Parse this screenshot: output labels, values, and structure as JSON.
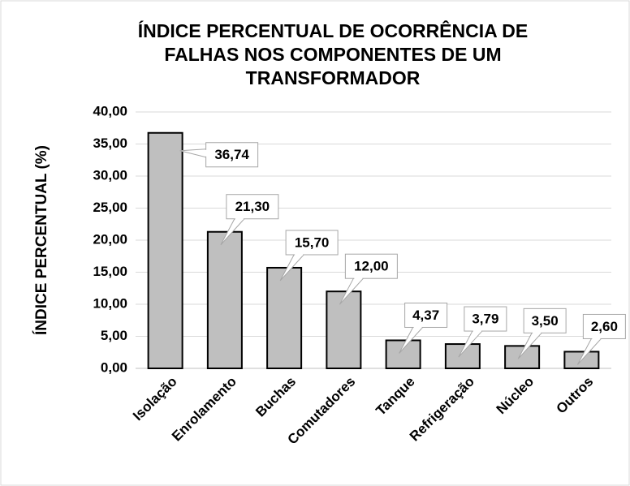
{
  "chart_data": {
    "type": "bar",
    "title": [
      "ÍNDICE PERCENTUAL DE OCORRÊNCIA DE",
      "FALHAS NOS COMPONENTES DE UM",
      "TRANSFORMADOR"
    ],
    "y_label": "ÍNDICE PERCENTUAL (%)",
    "categories": [
      "Isolação",
      "Enrolamento",
      "Buchas",
      "Comutadores",
      "Tanque",
      "Refrigeração",
      "Núcleo",
      "Outros"
    ],
    "values": [
      36.74,
      21.3,
      15.7,
      12.0,
      4.37,
      3.79,
      3.5,
      2.6
    ],
    "value_labels": [
      "36,74",
      "21,30",
      "15,70",
      "12,00",
      "4,37",
      "3,79",
      "3,50",
      "2,60"
    ],
    "color": "#bfbfbf",
    "ylim": [
      0,
      40
    ],
    "yticks": [
      {
        "value": 0,
        "label": "0,00"
      },
      {
        "value": 5,
        "label": "5,00"
      },
      {
        "value": 10,
        "label": "10,00"
      },
      {
        "value": 15,
        "label": "15,00"
      },
      {
        "value": 20,
        "label": "20,00"
      },
      {
        "value": 25,
        "label": "25,00"
      },
      {
        "value": 30,
        "label": "30,00"
      },
      {
        "value": 35,
        "label": "35,00"
      },
      {
        "value": 40,
        "label": "40,00"
      }
    ],
    "grid": true
  }
}
